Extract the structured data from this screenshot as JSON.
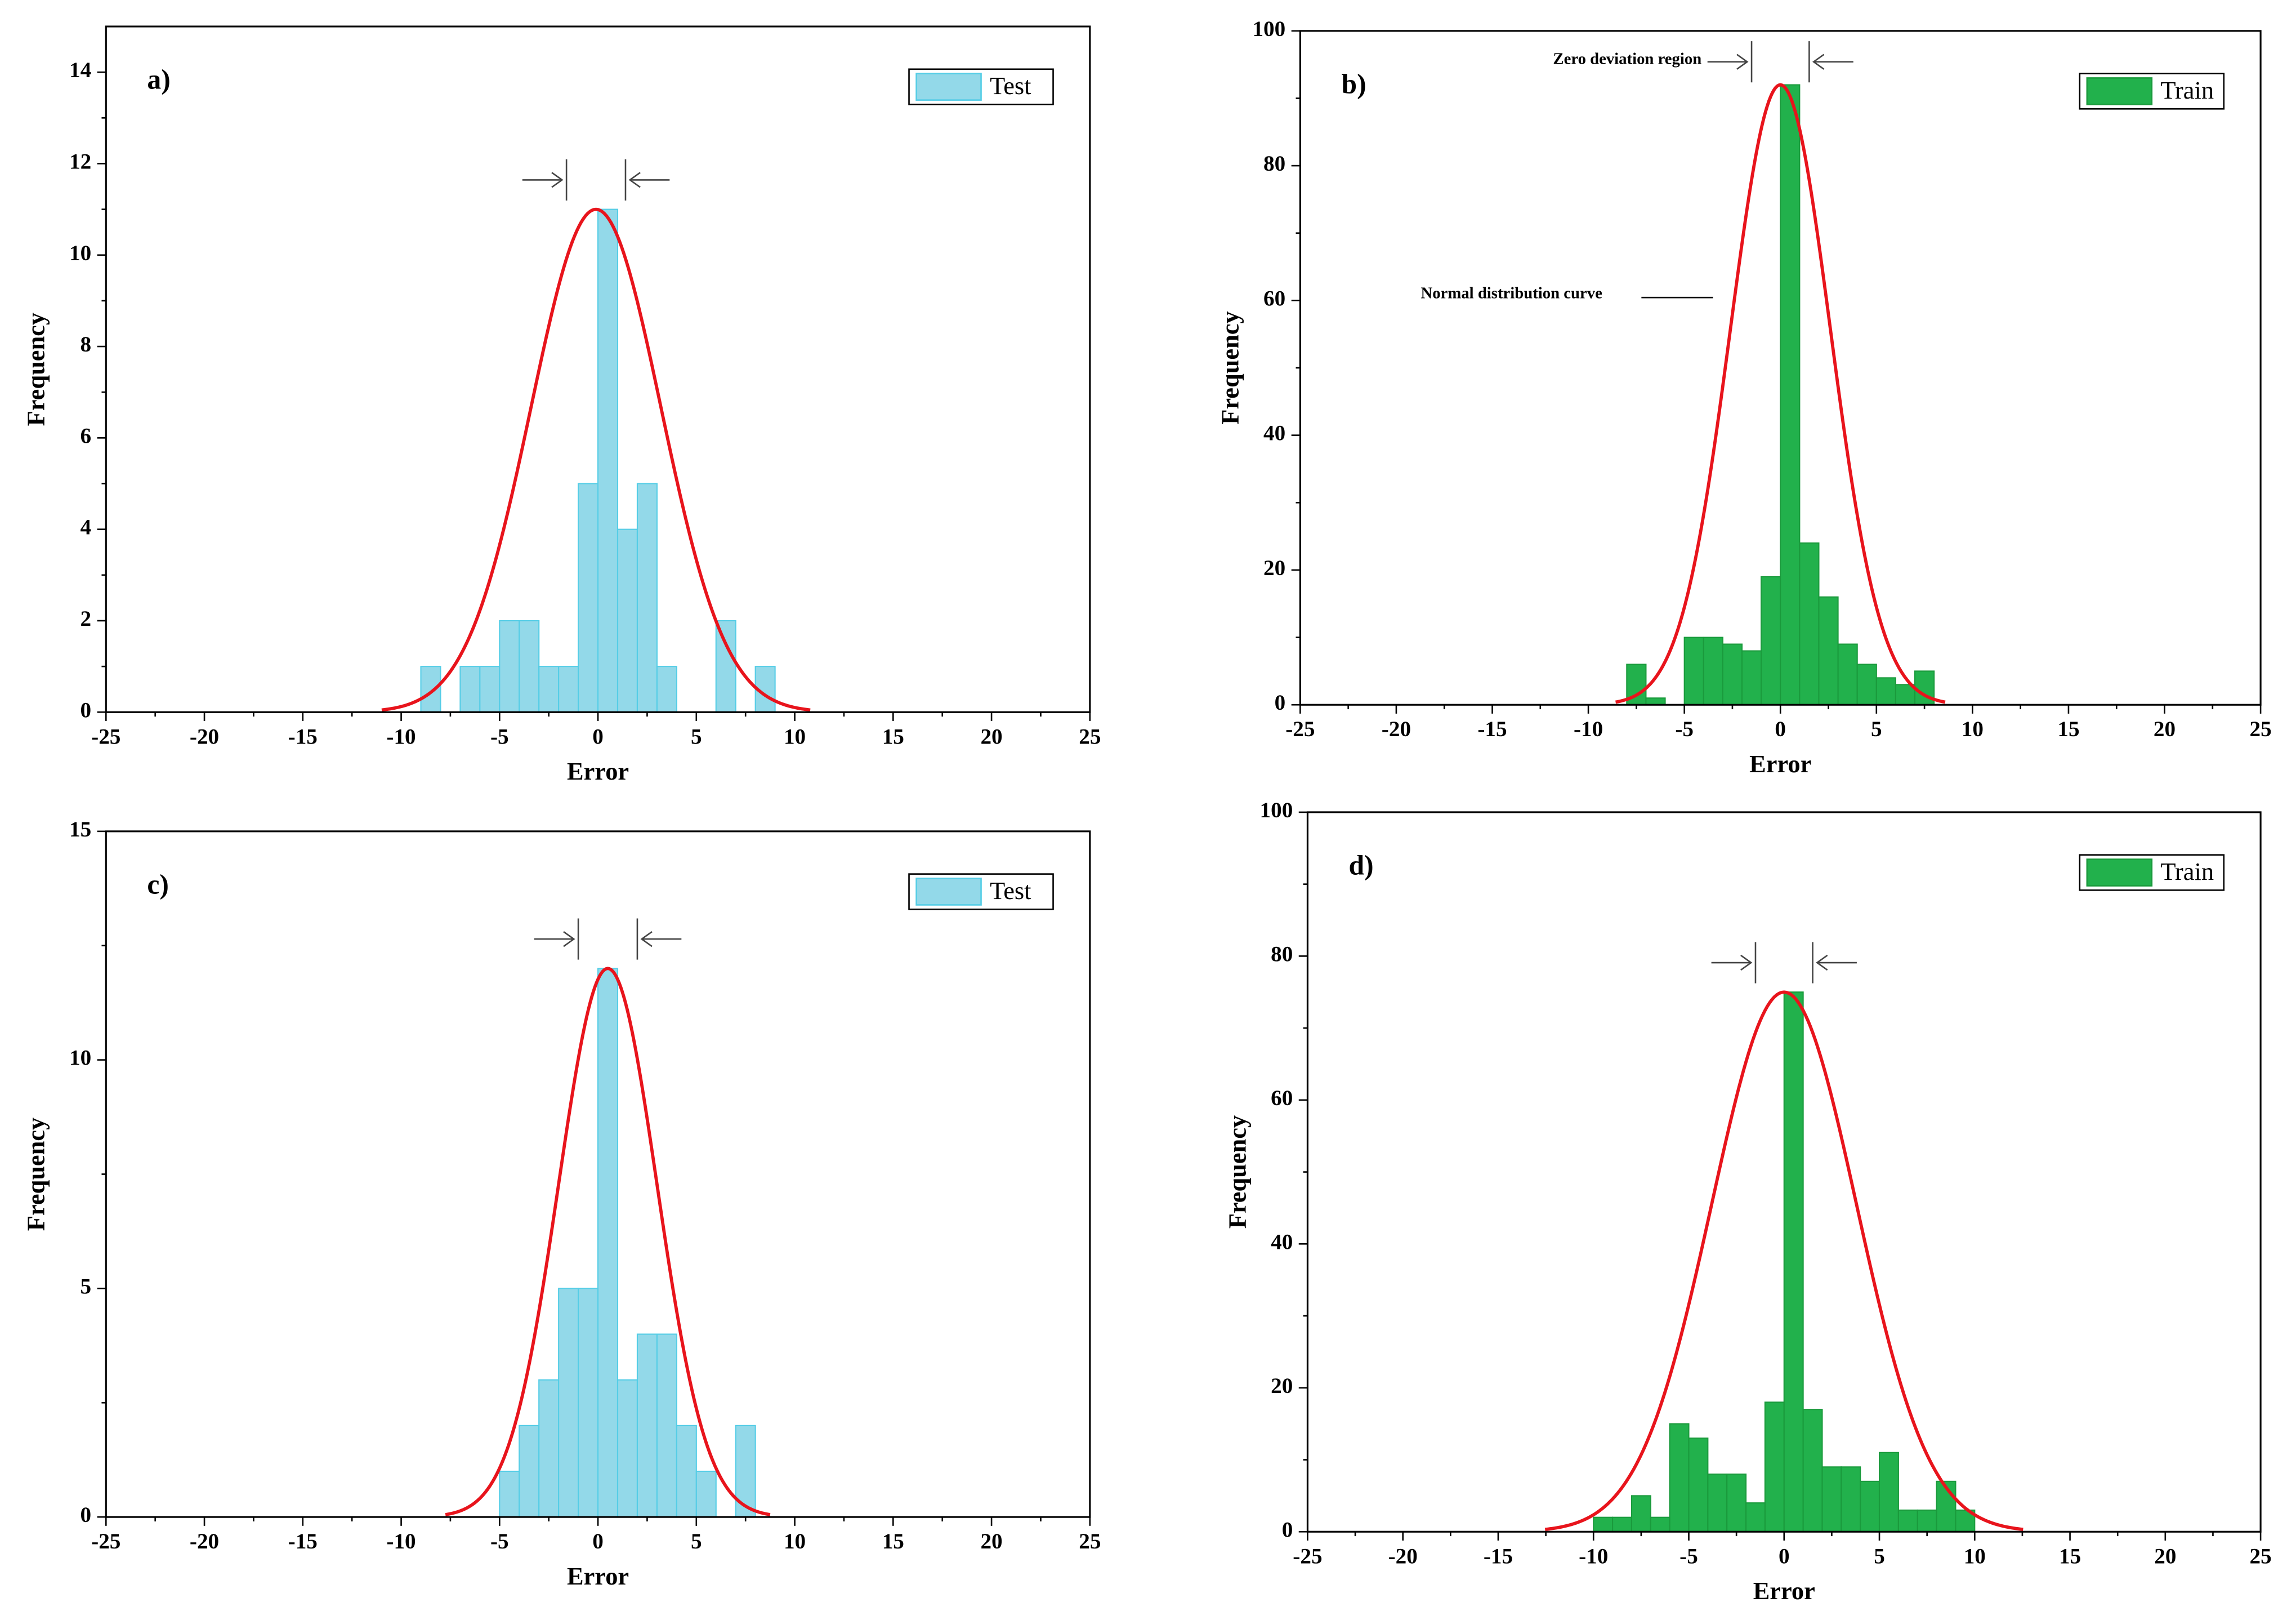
{
  "chart_data": [
    {
      "type": "histogram",
      "panel": "a)",
      "x_label": "Error",
      "y_label": "Frequency",
      "name": "Test",
      "color": "#93d9e9",
      "edge_color": "#55cde6",
      "bins": [
        -9,
        -8,
        -7,
        -6,
        -5,
        -4,
        -3,
        -2,
        -1,
        0,
        1,
        2,
        3,
        4,
        5,
        6,
        7,
        8,
        9
      ],
      "values": [
        1,
        0,
        1,
        1,
        2,
        2,
        1,
        1,
        5,
        11,
        4,
        5,
        1,
        0,
        0,
        2,
        0,
        1
      ],
      "fit": {
        "mean": -0.1,
        "sd": 3.3,
        "peak": 11,
        "color": "#e8141c"
      },
      "xlim": [
        -25,
        25
      ],
      "xticks": [
        -25,
        -20,
        -15,
        -10,
        -5,
        0,
        5,
        10,
        15,
        20,
        25
      ],
      "ylim": [
        0,
        15
      ],
      "yticks": [
        0,
        2,
        4,
        6,
        8,
        10,
        12,
        14
      ],
      "legend": "upper right"
    },
    {
      "type": "histogram",
      "panel": "b)",
      "x_label": "Error",
      "y_label": "Frequency",
      "name": "Train",
      "color": "#22b14c",
      "edge_color": "#1a9a3c",
      "bins": [
        -8,
        -7,
        -6,
        -5,
        -4,
        -3,
        -2,
        -1,
        0,
        1,
        2,
        3,
        4,
        5,
        6,
        7,
        8
      ],
      "values": [
        6,
        1,
        0,
        10,
        10,
        9,
        8,
        19,
        92,
        24,
        16,
        9,
        6,
        4,
        3,
        5
      ],
      "fit": {
        "mean": 0,
        "sd": 2.6,
        "peak": 92,
        "color": "#e8141c"
      },
      "annotations": [
        "Zero deviation region",
        "Normal distribution curve"
      ],
      "xlim": [
        -25,
        25
      ],
      "xticks": [
        -25,
        -20,
        -15,
        -10,
        -5,
        0,
        5,
        10,
        15,
        20,
        25
      ],
      "ylim": [
        0,
        100
      ],
      "yticks": [
        0,
        20,
        40,
        60,
        80,
        100
      ],
      "legend": "upper right"
    },
    {
      "type": "histogram",
      "panel": "c)",
      "x_label": "Error",
      "y_label": "Frequency",
      "name": "Test",
      "color": "#93d9e9",
      "edge_color": "#55cde6",
      "bins": [
        -5,
        -4,
        -3,
        -2,
        -1,
        0,
        1,
        2,
        3,
        4,
        5,
        6,
        7,
        8
      ],
      "values": [
        1,
        2,
        3,
        5,
        5,
        12,
        3,
        4,
        4,
        2,
        1,
        0,
        2
      ],
      "fit": {
        "mean": 0.5,
        "sd": 2.5,
        "peak": 12,
        "color": "#e8141c"
      },
      "xlim": [
        -25,
        25
      ],
      "xticks": [
        -25,
        -20,
        -15,
        -10,
        -5,
        0,
        5,
        10,
        15,
        20,
        25
      ],
      "ylim": [
        0,
        15
      ],
      "yticks": [
        0,
        5,
        10,
        15
      ],
      "legend": "upper right"
    },
    {
      "type": "histogram",
      "panel": "d)",
      "x_label": "Error",
      "y_label": "Frequency",
      "name": "Train",
      "color": "#22b14c",
      "edge_color": "#1a9a3c",
      "bins": [
        -10,
        -9,
        -8,
        -7,
        -6,
        -5,
        -4,
        -3,
        -2,
        -1,
        0,
        1,
        2,
        3,
        4,
        5,
        6,
        7,
        8,
        9,
        10
      ],
      "values": [
        2,
        2,
        5,
        2,
        15,
        13,
        8,
        8,
        4,
        18,
        75,
        17,
        9,
        9,
        7,
        11,
        3,
        3,
        7,
        3
      ],
      "fit": {
        "mean": 0,
        "sd": 3.8,
        "peak": 75,
        "color": "#e8141c"
      },
      "xlim": [
        -25,
        25
      ],
      "xticks": [
        -25,
        -20,
        -15,
        -10,
        -5,
        0,
        5,
        10,
        15,
        20,
        25
      ],
      "ylim": [
        0,
        100
      ],
      "yticks": [
        0,
        20,
        40,
        60,
        80,
        100
      ],
      "legend": "upper right"
    }
  ]
}
